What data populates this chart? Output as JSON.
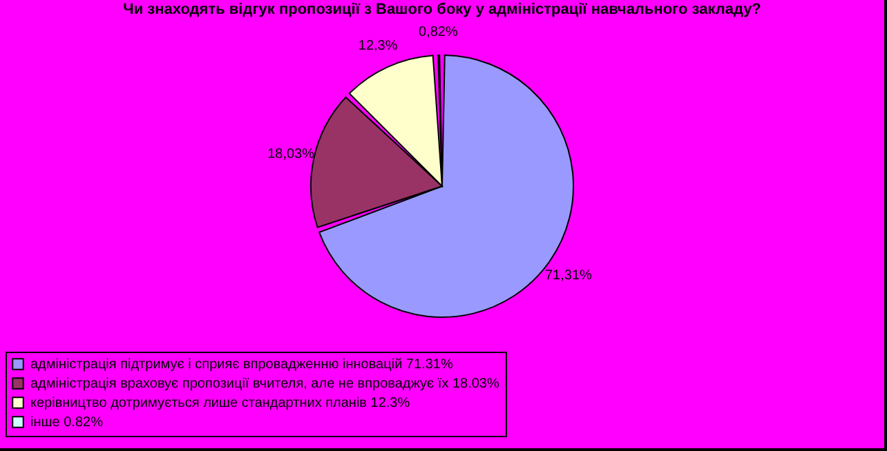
{
  "chart_data": {
    "type": "pie",
    "title": "Чи знаходять відгук пропозиції з Вашого боку у адміністрації навчального закладу?",
    "categories": [
      "адміністрація підтримує і сприяє впровадженню інновацій 71.31%",
      "адміністрація враховує пропозиції вчителя, але не впроваджує їх 18.03%",
      "керівництво дотримується лише стандартних планів 12.3%",
      "інше 0.82%"
    ],
    "values": [
      71.31,
      18.03,
      12.3,
      0.82
    ],
    "colors": [
      "#9999ff",
      "#993366",
      "#ffffcc",
      "#ccffff"
    ],
    "value_labels": [
      "71,31%",
      "18,03%",
      "12,3%",
      "0,82%"
    ],
    "legend": "bottom"
  }
}
